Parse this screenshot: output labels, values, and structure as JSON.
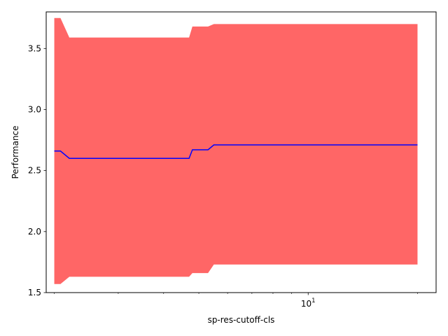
{
  "chart_data": {
    "type": "line",
    "xlabel": "sp-res-cutoff-cls",
    "ylabel": "Performance",
    "xscale": "log",
    "xlim": [
      1.9,
      22.5
    ],
    "ylim": [
      1.5,
      3.8
    ],
    "grid": false,
    "colors": {
      "line": "#0000ff",
      "band": "#ff6666"
    },
    "y_ticks": [
      {
        "value": 1.5,
        "label": "1.5"
      },
      {
        "value": 2.0,
        "label": "2.0"
      },
      {
        "value": 2.5,
        "label": "2.5"
      },
      {
        "value": 3.0,
        "label": "3.0"
      },
      {
        "value": 3.5,
        "label": "3.5"
      }
    ],
    "x_major_ticks": [
      {
        "value": 10,
        "base": "10",
        "exp": "1"
      }
    ],
    "x_minor_ticks": [
      2,
      3,
      4,
      5,
      6,
      7,
      8,
      9,
      20
    ],
    "series": [
      {
        "x": [
          2.0,
          2.08,
          2.2,
          2.4,
          4.7,
          4.8,
          5.3,
          5.5,
          10.0,
          20.0
        ],
        "y": [
          2.66,
          2.66,
          2.6,
          2.6,
          2.6,
          2.67,
          2.67,
          2.71,
          2.71,
          2.71
        ],
        "upper": [
          3.75,
          3.75,
          3.59,
          3.59,
          3.59,
          3.68,
          3.68,
          3.7,
          3.7,
          3.7
        ],
        "lower": [
          1.57,
          1.57,
          1.63,
          1.63,
          1.63,
          1.66,
          1.66,
          1.73,
          1.73,
          1.73
        ]
      }
    ]
  }
}
